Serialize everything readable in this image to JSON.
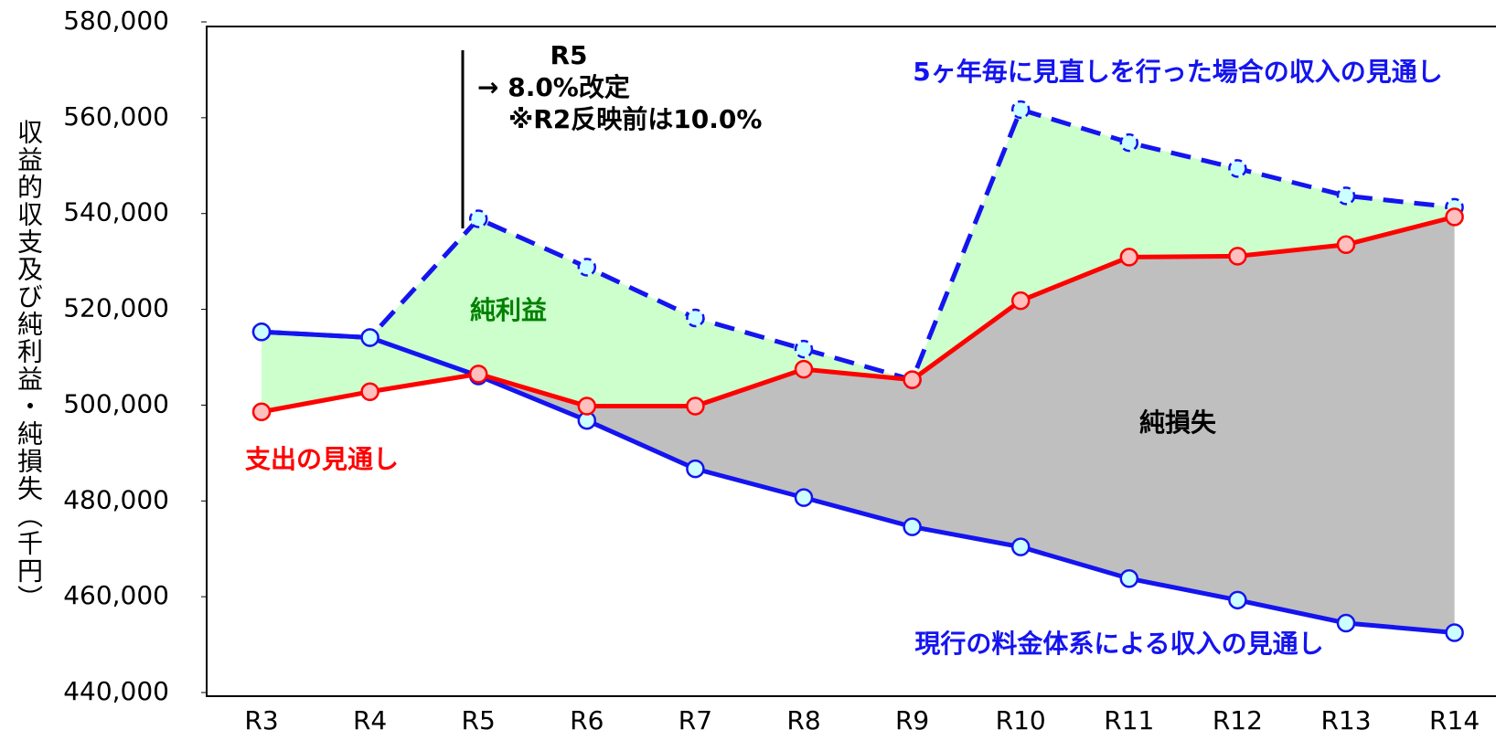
{
  "chart_data": {
    "type": "line",
    "y_label": "収益的収支及び純利益・純損失（千円）",
    "categories": [
      "R3",
      "R4",
      "R5",
      "R6",
      "R7",
      "R8",
      "R9",
      "R10",
      "R11",
      "R12",
      "R13",
      "R14"
    ],
    "series": [
      {
        "name": "現行の料金体系による収入の見通し",
        "color": "#1414f0",
        "marker_fill": "#ccffff",
        "dashed": false,
        "values": [
          515300,
          514100,
          506100,
          496800,
          486700,
          480700,
          474600,
          470400,
          463800,
          459300,
          454500,
          452500
        ]
      },
      {
        "name": "支出の見通し",
        "color": "#ff0000",
        "marker_fill": "#ffbfbf",
        "dashed": false,
        "values": [
          498600,
          502800,
          506500,
          499800,
          499800,
          507500,
          505300,
          521800,
          530900,
          531100,
          533500,
          539300
        ]
      },
      {
        "name": "5ヶ年毎に見直しを行った場合の収入の見通し",
        "color": "#1414f0",
        "marker_fill": "#ccffff",
        "dashed": true,
        "values": [
          515300,
          514100,
          538900,
          528800,
          518200,
          511700,
          505300,
          561700,
          554800,
          549400,
          543700,
          541300
        ]
      }
    ],
    "net_profit": {
      "label": "純利益",
      "color": "#ccffcc",
      "text_color": "#008000"
    },
    "net_loss": {
      "label": "純損失",
      "color": "#bfbfbf",
      "text_color": "#000000"
    },
    "annotation": [
      "R5",
      "→ 8.0%改定",
      "※R2反映前は10.0%"
    ],
    "ylim": [
      440000,
      580000
    ],
    "yticks": [
      {
        "value": 440000,
        "label": "440,000"
      },
      {
        "value": 460000,
        "label": "460,000"
      },
      {
        "value": 480000,
        "label": "480,000"
      },
      {
        "value": 500000,
        "label": "500,000"
      },
      {
        "value": 520000,
        "label": "520,000"
      },
      {
        "value": 540000,
        "label": "540,000"
      },
      {
        "value": 560000,
        "label": "560,000"
      },
      {
        "value": 580000,
        "label": "580,000"
      }
    ]
  }
}
